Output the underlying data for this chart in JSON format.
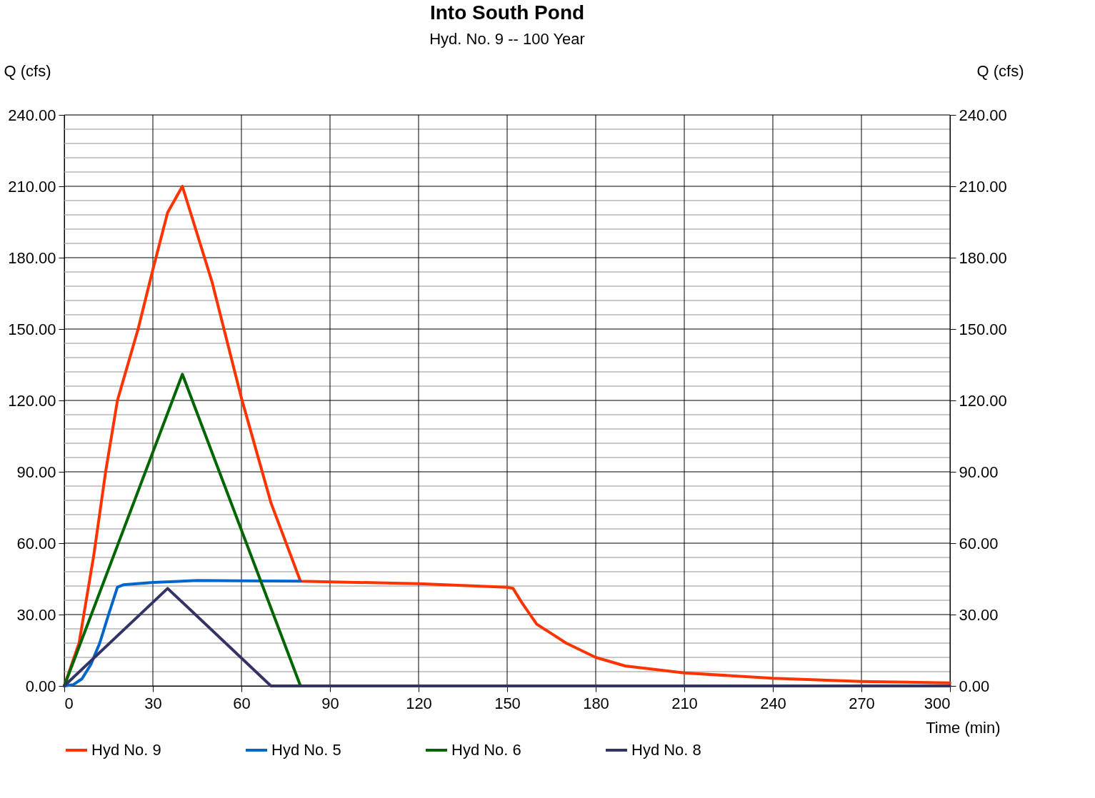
{
  "chart_data": {
    "type": "line",
    "title": "Into South Pond",
    "subtitle": "Hyd. No. 9 -- 100 Year",
    "xlabel": "Time (min)",
    "ylabel": "Q (cfs)",
    "y2label": "Q (cfs)",
    "xlim": [
      0,
      300
    ],
    "xticks": [
      0,
      30,
      60,
      90,
      120,
      150,
      180,
      210,
      240,
      270,
      300
    ],
    "ylim": [
      0,
      240
    ],
    "yticks": [
      {
        "value": 0,
        "label": "0.00"
      },
      {
        "value": 6,
        "label": null
      },
      {
        "value": 12,
        "label": null
      },
      {
        "value": 18,
        "label": null
      },
      {
        "value": 24,
        "label": null
      },
      {
        "value": 30,
        "label": "30.00"
      },
      {
        "value": 36,
        "label": null
      },
      {
        "value": 42,
        "label": null
      },
      {
        "value": 48,
        "label": null
      },
      {
        "value": 54,
        "label": null
      },
      {
        "value": 60,
        "label": "60.00"
      },
      {
        "value": 66,
        "label": null
      },
      {
        "value": 72,
        "label": null
      },
      {
        "value": 78,
        "label": null
      },
      {
        "value": 84,
        "label": null
      },
      {
        "value": 90,
        "label": "90.00"
      },
      {
        "value": 96,
        "label": null
      },
      {
        "value": 102,
        "label": null
      },
      {
        "value": 108,
        "label": null
      },
      {
        "value": 114,
        "label": null
      },
      {
        "value": 120,
        "label": "120.00"
      },
      {
        "value": 126,
        "label": null
      },
      {
        "value": 132,
        "label": null
      },
      {
        "value": 138,
        "label": null
      },
      {
        "value": 144,
        "label": null
      },
      {
        "value": 150,
        "label": "150.00"
      },
      {
        "value": 156,
        "label": null
      },
      {
        "value": 162,
        "label": null
      },
      {
        "value": 168,
        "label": null
      },
      {
        "value": 174,
        "label": null
      },
      {
        "value": 180,
        "label": "180.00"
      },
      {
        "value": 186,
        "label": null
      },
      {
        "value": 192,
        "label": null
      },
      {
        "value": 198,
        "label": null
      },
      {
        "value": 204,
        "label": null
      },
      {
        "value": 210,
        "label": "210.00"
      },
      {
        "value": 216,
        "label": null
      },
      {
        "value": 222,
        "label": null
      },
      {
        "value": 228,
        "label": null
      },
      {
        "value": 234,
        "label": null
      },
      {
        "value": 240,
        "label": "240.00"
      }
    ],
    "y2lim": [
      0,
      240
    ],
    "y2ticks": [
      {
        "value": 0,
        "label": "0.00"
      },
      {
        "value": 30,
        "label": "30.00"
      },
      {
        "value": 60,
        "label": "60.00"
      },
      {
        "value": 90,
        "label": "90.00"
      },
      {
        "value": 120,
        "label": "120.00"
      },
      {
        "value": 150,
        "label": "150.00"
      },
      {
        "value": 180,
        "label": "180.00"
      },
      {
        "value": 210,
        "label": "210.00"
      },
      {
        "value": 240,
        "label": "240.00"
      }
    ],
    "grid": true,
    "legend": "bottom",
    "series": [
      {
        "name": "Hyd No. 9",
        "color": "#ff3300",
        "x": [
          0,
          5,
          10,
          14,
          18,
          25,
          30,
          35,
          40,
          50,
          60,
          70,
          80,
          120,
          150,
          152,
          155,
          160,
          165,
          170,
          180,
          190,
          210,
          240,
          270,
          300
        ],
        "values": [
          0,
          18,
          55,
          90,
          120,
          150,
          175,
          199,
          210,
          170,
          121,
          77,
          44,
          43,
          41.5,
          41,
          35,
          26,
          22,
          18,
          12,
          8.4,
          5.5,
          3.2,
          1.9,
          1.3
        ]
      },
      {
        "name": "Hyd No. 5",
        "color": "#0066cc",
        "x": [
          0,
          3,
          6,
          9,
          12,
          15,
          18,
          20,
          30,
          45,
          60,
          80
        ],
        "values": [
          0,
          0.5,
          3,
          9,
          18,
          30,
          41.5,
          42.5,
          43.5,
          44.3,
          44.2,
          44
        ]
      },
      {
        "name": "Hyd No. 6",
        "color": "#006600",
        "x": [
          0,
          40,
          80
        ],
        "values": [
          0,
          131,
          0
        ]
      },
      {
        "name": "Hyd No. 8",
        "color": "#333366",
        "x": [
          0,
          35,
          70,
          300
        ],
        "values": [
          0,
          41,
          0,
          0
        ]
      }
    ]
  }
}
